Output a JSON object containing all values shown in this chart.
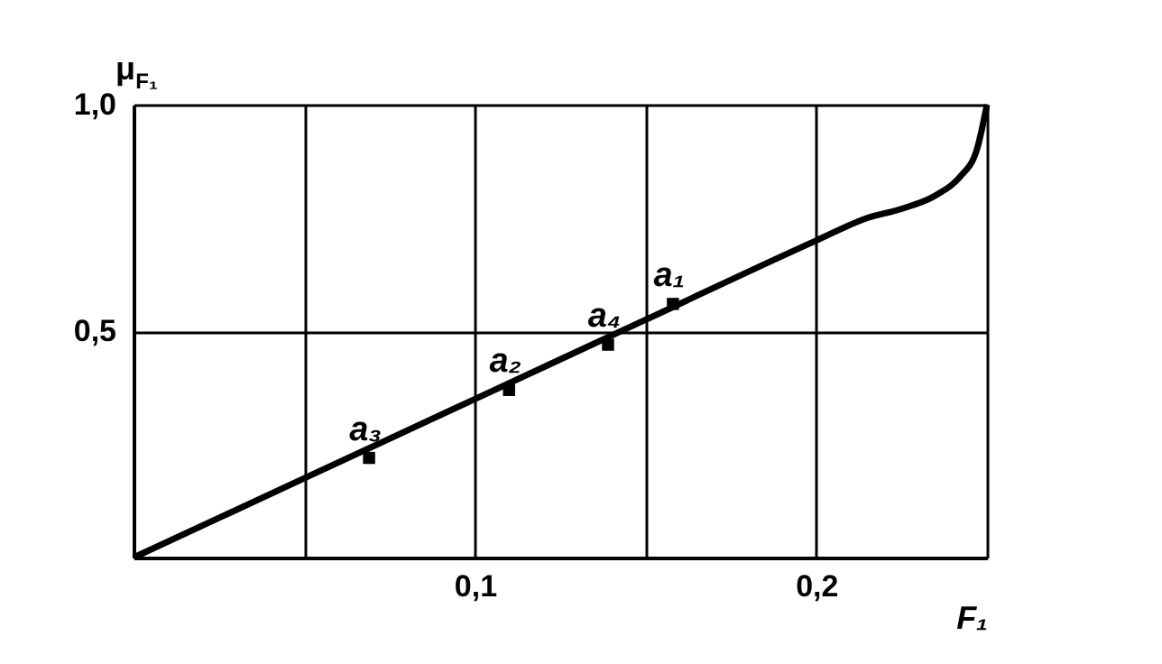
{
  "chart_data": {
    "type": "line",
    "xlabel": "F₁",
    "ylabel": "μ$_{F₁}$",
    "x": [
      0,
      0.05,
      0.1,
      0.15,
      0.2,
      0.215,
      0.225,
      0.235,
      0.242,
      0.247,
      0.25
    ],
    "series": [
      {
        "color": "#000000",
        "values": [
          0,
          0.175,
          0.35,
          0.525,
          0.7,
          0.75,
          0.77,
          0.8,
          0.84,
          0.9,
          1.0
        ]
      },
      {
        "type": "scatter",
        "color": "#000000",
        "marker": "square",
        "x": [
          0.069,
          0.11,
          0.139,
          0.158
        ],
        "values": [
          0.22,
          0.37,
          0.47,
          0.56
        ]
      }
    ],
    "annotations": [
      {
        "text": "a₃",
        "x": 0.069,
        "y": 0.22
      },
      {
        "text": "a₂",
        "x": 0.11,
        "y": 0.37
      },
      {
        "text": "a₄",
        "x": 0.139,
        "y": 0.47
      },
      {
        "text": "a₁",
        "x": 0.158,
        "y": 0.56
      }
    ],
    "xlim": [
      0,
      0.25
    ],
    "ylim": [
      0,
      1
    ],
    "xticks": [
      {
        "value": 0.05,
        "label": null
      },
      {
        "value": 0.1,
        "label": "0,1"
      },
      {
        "value": 0.15,
        "label": null
      },
      {
        "value": 0.2,
        "label": "0,2"
      },
      {
        "value": 0.25,
        "label": null
      }
    ],
    "yticks": [
      {
        "value": 0.5,
        "label": "0,5"
      },
      {
        "value": 1.0,
        "label": "1,0"
      }
    ],
    "grid": true
  }
}
